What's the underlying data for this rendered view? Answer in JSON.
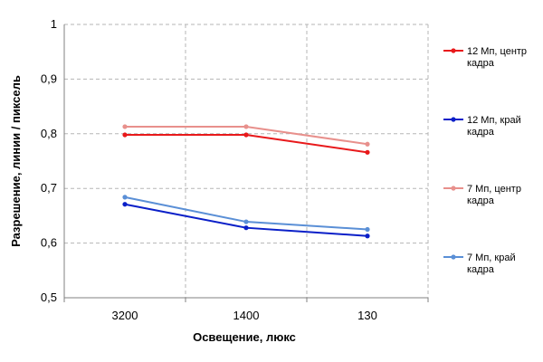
{
  "chart_data": {
    "type": "line",
    "title": "",
    "xlabel": "Освещение,  люкс",
    "ylabel": "Разрешение,  линии  / пиксель",
    "categories": [
      "3200",
      "1400",
      "130"
    ],
    "ylim": [
      0.5,
      1.0
    ],
    "yticks": [
      0.5,
      0.6,
      0.7,
      0.8,
      0.9,
      1.0
    ],
    "ytick_labels": [
      "0,5",
      "0,6",
      "0,7",
      "0,8",
      "0,9",
      "1"
    ],
    "grid": true,
    "legend_position": "right",
    "series": [
      {
        "name": "12 Мп, центр кадра",
        "name_lines": [
          "12 Мп, центр",
          "кадра"
        ],
        "color": "#e8191b",
        "values": [
          0.798,
          0.798,
          0.766
        ]
      },
      {
        "name": "12 Мп, край кадра",
        "name_lines": [
          "12 Мп, край",
          "кадра"
        ],
        "color": "#0a1fc8",
        "values": [
          0.671,
          0.628,
          0.613
        ]
      },
      {
        "name": "7 Мп, центр кадра",
        "name_lines": [
          "7 Мп, центр",
          "кадра"
        ],
        "color": "#e8908c",
        "values": [
          0.813,
          0.813,
          0.781
        ]
      },
      {
        "name": "7 Мп, край кадра",
        "name_lines": [
          "7 Мп, край",
          "кадра"
        ],
        "color": "#5a8fd6",
        "values": [
          0.684,
          0.639,
          0.625
        ]
      }
    ]
  }
}
